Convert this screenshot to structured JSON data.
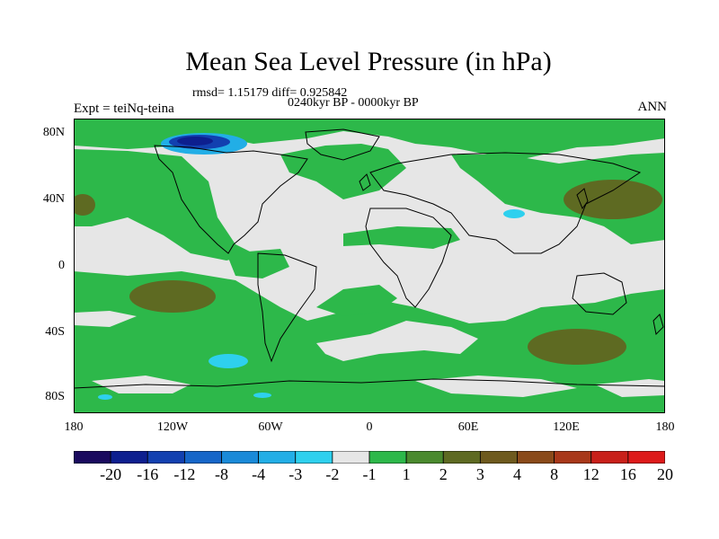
{
  "title": "Mean Sea Level Pressure (in hPa)",
  "stats_line": "rmsd= 1.15179 diff= 0.925842",
  "period_line": "0240kyr BP - 0000kyr BP",
  "experiment_label": "Expt = teiNq-teina",
  "season_label": "ANN",
  "lat_labels": [
    "80N",
    "40N",
    "0",
    "40S",
    "80S"
  ],
  "lon_labels": [
    "180",
    "120W",
    "60W",
    "0",
    "60E",
    "120E",
    "180"
  ],
  "colorbar": {
    "colors": [
      "#1a0a5e",
      "#0d1f8f",
      "#1240b0",
      "#1666c8",
      "#1a8ad8",
      "#22aee6",
      "#2ed0ee",
      "#e6e6e6",
      "#2db84a",
      "#4a8a2e",
      "#5e6a22",
      "#6e5a1e",
      "#8a4a1a",
      "#a8381a",
      "#c8201a",
      "#dd1a1a"
    ],
    "labels": [
      "-20",
      "-16",
      "-12",
      "-8",
      "-4",
      "-3",
      "-2",
      "-1",
      "1",
      "2",
      "3",
      "4",
      "8",
      "12",
      "16",
      "20"
    ]
  },
  "colors": {
    "neutral": "#e6e6e6",
    "green": "#2db84a",
    "olive": "#5e6a22",
    "cyan": "#2ed0ee",
    "blue": "#1240b0",
    "coast": "#000000"
  }
}
